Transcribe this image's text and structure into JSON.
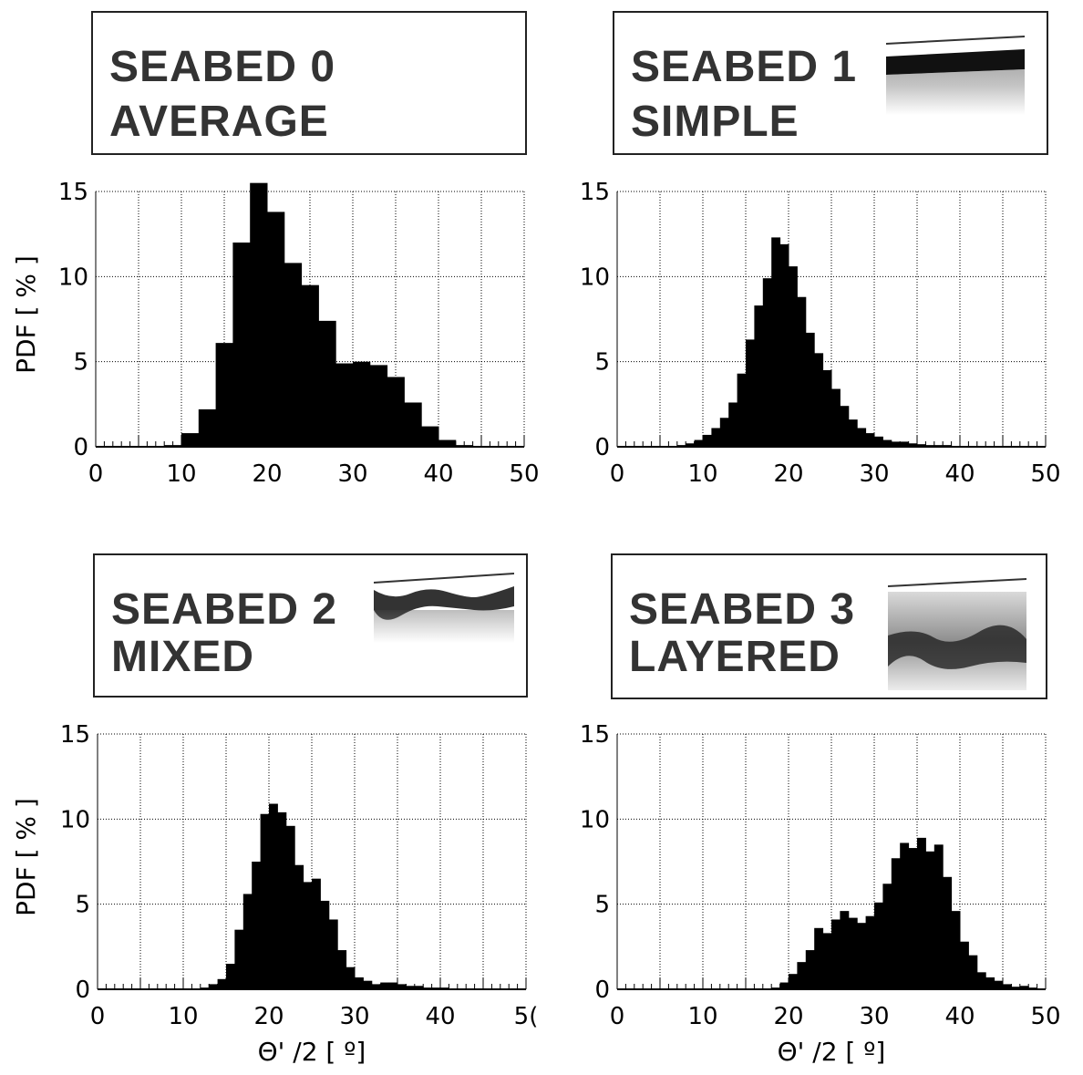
{
  "panels": [
    {
      "title_line1": "SEABED 0",
      "title_line2": "AVERAGE",
      "has_thumbnail": false,
      "grid_color": "#000000"
    },
    {
      "title_line1": "SEABED 1",
      "title_line2": "SIMPLE",
      "has_thumbnail": true,
      "grid_color": "#000000"
    },
    {
      "title_line1": "SEABED 2",
      "title_line2": "MIXED",
      "has_thumbnail": true,
      "grid_color": "#000000"
    },
    {
      "title_line1": "SEABED 3",
      "title_line2": "LAYERED",
      "has_thumbnail": true,
      "grid_color": "#000000"
    }
  ],
  "chart_data": [
    {
      "type": "bar",
      "ylabel": "PDF [ % ]",
      "xlabel": "",
      "xlim": [
        0,
        50
      ],
      "ylim": [
        0,
        15
      ],
      "xticks": [
        "0",
        "10",
        "20",
        "30",
        "40",
        "50"
      ],
      "yticks": [
        "0",
        "5",
        "10",
        "15"
      ],
      "bin_width": 2,
      "bin_start": 6,
      "values": [
        0.0,
        0.1,
        0.8,
        2.2,
        6.1,
        12.0,
        15.5,
        13.8,
        10.8,
        9.5,
        7.4,
        4.9,
        5.0,
        4.8,
        4.1,
        2.6,
        1.2,
        0.4,
        0.1,
        0.0,
        0.0,
        0.0
      ]
    },
    {
      "type": "bar",
      "ylabel": "",
      "xlabel": "",
      "xlim": [
        0,
        50
      ],
      "ylim": [
        0,
        15
      ],
      "xticks": [
        "0",
        "10",
        "20",
        "30",
        "40",
        "50"
      ],
      "yticks": [
        "0",
        "5",
        "10",
        "15"
      ],
      "bin_width": 1,
      "bin_start": 6,
      "values": [
        0.05,
        0.1,
        0.2,
        0.4,
        0.7,
        1.1,
        1.7,
        2.6,
        4.3,
        6.3,
        8.3,
        9.9,
        12.3,
        11.9,
        10.6,
        8.8,
        6.7,
        5.5,
        4.5,
        3.4,
        2.4,
        1.6,
        1.1,
        0.8,
        0.6,
        0.4,
        0.3,
        0.3,
        0.2,
        0.15,
        0.1,
        0.1,
        0.1,
        0.05,
        0.05
      ]
    },
    {
      "type": "bar",
      "ylabel": "PDF [ % ]",
      "xlabel": "Θ' /2 [ º]",
      "xlim": [
        0,
        50
      ],
      "ylim": [
        0,
        15
      ],
      "xticks": [
        "0",
        "10",
        "20",
        "30",
        "40",
        "5("
      ],
      "yticks": [
        "0",
        "5",
        "10",
        "15"
      ],
      "bin_width": 1,
      "bin_start": 12,
      "values": [
        0.1,
        0.3,
        0.6,
        1.5,
        3.5,
        5.6,
        7.5,
        10.3,
        10.9,
        10.4,
        9.6,
        7.3,
        6.3,
        6.5,
        5.2,
        4.1,
        2.3,
        1.3,
        0.7,
        0.5,
        0.3,
        0.4,
        0.4,
        0.3,
        0.2,
        0.2,
        0.1,
        0.1,
        0.1
      ]
    },
    {
      "type": "bar",
      "ylabel": "",
      "xlabel": "Θ' /2 [ º]",
      "xlim": [
        0,
        50
      ],
      "ylim": [
        0,
        15
      ],
      "xticks": [
        "0",
        "10",
        "20",
        "30",
        "40",
        "50"
      ],
      "yticks": [
        "0",
        "5",
        "10",
        "15"
      ],
      "bin_width": 1,
      "bin_start": 18,
      "values": [
        0.1,
        0.4,
        0.9,
        1.6,
        2.3,
        3.6,
        3.3,
        4.1,
        4.6,
        4.2,
        3.9,
        4.3,
        5.1,
        6.2,
        7.7,
        8.6,
        8.3,
        8.9,
        8.1,
        8.5,
        6.6,
        4.6,
        2.8,
        2.0,
        1.0,
        0.7,
        0.5,
        0.3,
        0.15,
        0.2,
        0.1
      ]
    }
  ]
}
